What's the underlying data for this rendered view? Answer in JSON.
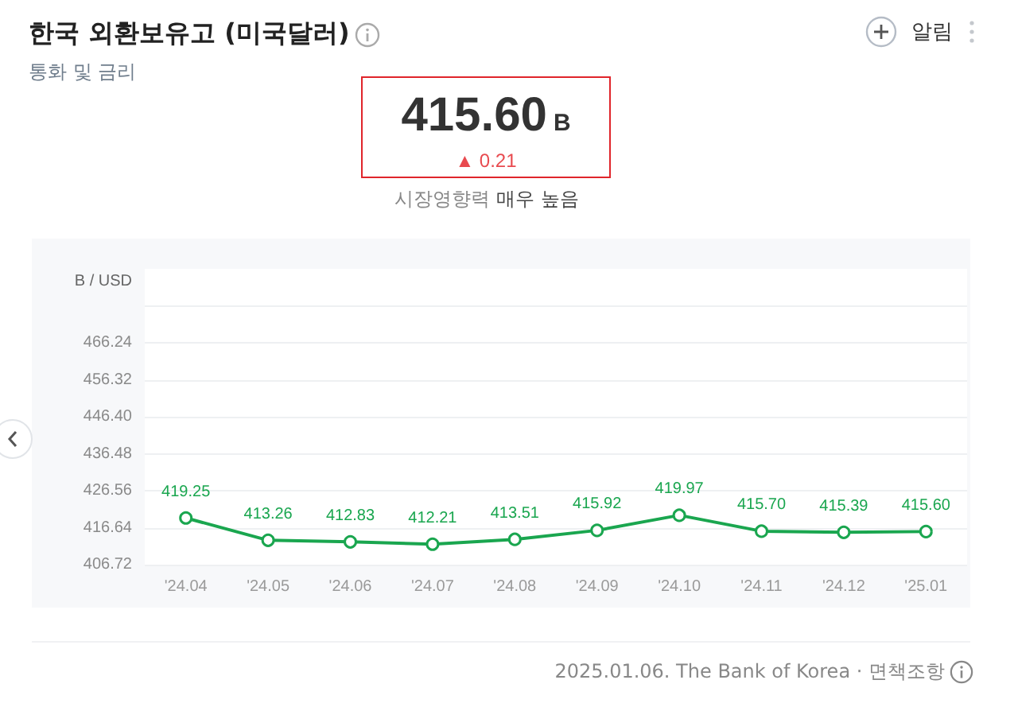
{
  "chart_data": {
    "type": "line",
    "title": "한국 외환보유고 (미국달러)",
    "subtitle": "통화 및 금리",
    "ylabel": "B / USD",
    "annotations": [
      "415.60",
      "B",
      "▲ 0.21",
      "시장영향력",
      "매우 높음",
      "알림",
      "2025.01.06. The Bank of Korea · 면책조항"
    ],
    "categories": [
      "'24.04",
      "'24.05",
      "'24.06",
      "'24.07",
      "'24.08",
      "'24.09",
      "'24.10",
      "'24.11",
      "'24.12",
      "'25.01"
    ],
    "series": [
      {
        "color": "#1aa64f",
        "values": [
          419.25,
          413.26,
          412.83,
          412.21,
          413.51,
          415.92,
          419.97,
          415.7,
          415.39,
          415.6
        ],
        "value_labels": [
          "419.25",
          "413.26",
          "412.83",
          "412.21",
          "413.51",
          "415.92",
          "419.97",
          "415.70",
          "415.39",
          "415.60"
        ]
      }
    ],
    "ylim": [
      406.72,
      486.08
    ],
    "yticks": [
      406.72,
      416.64,
      426.56,
      436.48,
      {
        "value": 446.4,
        "label": "446.40"
      },
      456.32,
      466.24,
      {
        "value": 476.16,
        "label": null
      }
    ],
    "grid": "y",
    "marker": "circle",
    "line_style": "solid"
  }
}
